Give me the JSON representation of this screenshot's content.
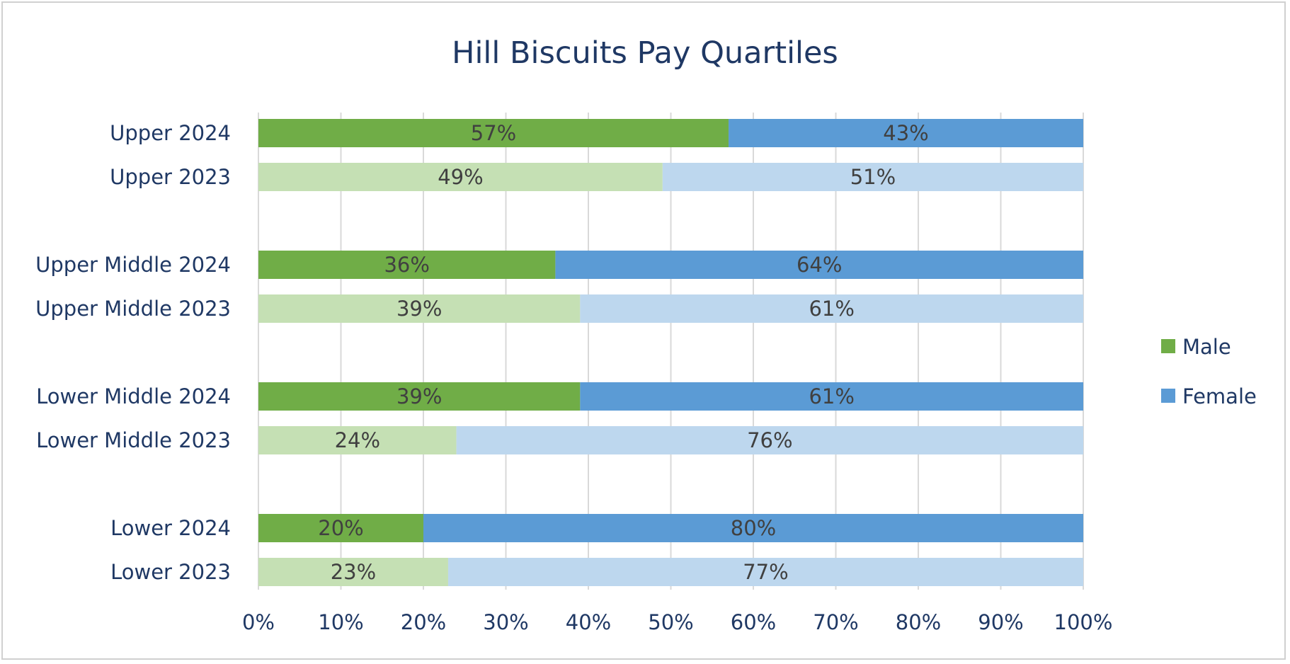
{
  "chart_data": {
    "type": "bar",
    "orientation": "horizontal",
    "stacked": "percent",
    "title": "Hill Biscuits Pay Quartiles",
    "xlabel": "",
    "ylabel": "",
    "xlim": [
      0,
      100
    ],
    "x_ticks": [
      "0%",
      "10%",
      "20%",
      "30%",
      "40%",
      "50%",
      "60%",
      "70%",
      "80%",
      "90%",
      "100%"
    ],
    "grid": "vertical",
    "legend_position": "right",
    "categories": [
      "Upper 2024",
      "Upper 2023",
      "Upper Middle 2024",
      "Upper Middle 2023",
      "Lower Middle 2024",
      "Lower Middle 2023",
      "Lower 2024",
      "Lower 2023"
    ],
    "series": [
      {
        "name": "Male",
        "values": [
          57,
          49,
          36,
          39,
          39,
          24,
          20,
          23
        ],
        "labels": [
          "57%",
          "49%",
          "36%",
          "39%",
          "39%",
          "24%",
          "20%",
          "23%"
        ],
        "color_current": "#70ad47",
        "color_previous": "#c5e0b4"
      },
      {
        "name": "Female",
        "values": [
          43,
          51,
          64,
          61,
          61,
          76,
          80,
          77
        ],
        "labels": [
          "43%",
          "51%",
          "64%",
          "61%",
          "61%",
          "76%",
          "80%",
          "77%"
        ],
        "color_current": "#5b9bd5",
        "color_previous": "#bdd7ee"
      }
    ],
    "legend": [
      {
        "label": "Male",
        "color": "#70ad47"
      },
      {
        "label": "Female",
        "color": "#5b9bd5"
      }
    ],
    "colors": {
      "text": "#1f3864",
      "data_label": "#404040",
      "gridline": "#d9d9d9"
    }
  }
}
